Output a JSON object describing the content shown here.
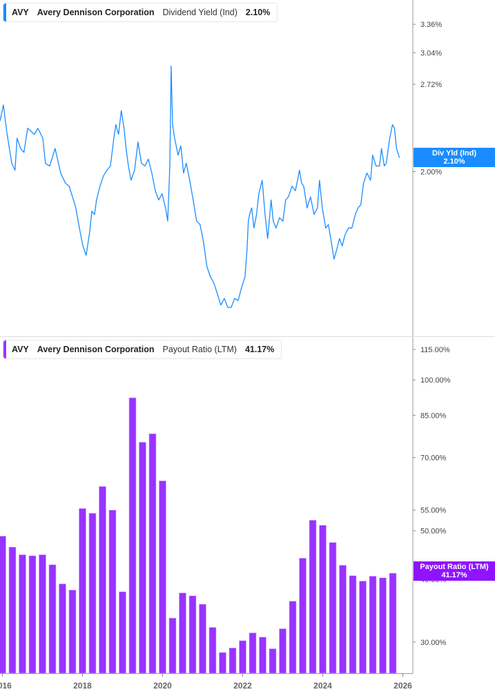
{
  "top_legend": {
    "ticker": "AVY",
    "company": "Avery Dennison Corporation",
    "metric": "Dividend Yield (Ind)",
    "value": "2.10%"
  },
  "bottom_legend": {
    "ticker": "AVY",
    "company": "Avery Dennison Corporation",
    "metric": "Payout Ratio (LTM)",
    "value": "41.17%"
  },
  "top_tag": {
    "label": "Div Yld (Ind)",
    "value": "2.10%"
  },
  "bottom_tag": {
    "label": "Payout Ratio (LTM)",
    "value": "41.17%"
  },
  "colors": {
    "yield": "#1a8cff",
    "payout": "#9933ff"
  },
  "chart_data": [
    {
      "type": "line",
      "title": "",
      "series": [
        {
          "name": "Dividend Yield (Ind)",
          "unit": "%"
        }
      ],
      "yscale": "log",
      "ylim": [
        1.12,
        3.66
      ],
      "xlim": [
        "2015-12",
        "2026-03"
      ],
      "yticks": [
        "2.00%",
        "2.72%",
        "3.04%",
        "3.36%"
      ],
      "grid": false,
      "points": [
        [
          "2015-12-10",
          2.39
        ],
        [
          "2016-01-10",
          2.53
        ],
        [
          "2016-02-10",
          2.3
        ],
        [
          "2016-03-25",
          2.06
        ],
        [
          "2016-04-25",
          2.01
        ],
        [
          "2016-05-13",
          2.25
        ],
        [
          "2016-06-15",
          2.17
        ],
        [
          "2016-07-15",
          2.14
        ],
        [
          "2016-08-18",
          2.33
        ],
        [
          "2016-10-18",
          2.28
        ],
        [
          "2016-11-20",
          2.33
        ],
        [
          "2017-01-04",
          2.25
        ],
        [
          "2017-01-28",
          2.06
        ],
        [
          "2017-03-06",
          2.04
        ],
        [
          "2017-04-25",
          2.17
        ],
        [
          "2017-06-15",
          1.99
        ],
        [
          "2017-07-28",
          1.92
        ],
        [
          "2017-09-01",
          1.9
        ],
        [
          "2017-10-01",
          1.83
        ],
        [
          "2017-11-01",
          1.76
        ],
        [
          "2017-12-03",
          1.64
        ],
        [
          "2018-01-04",
          1.54
        ],
        [
          "2018-02-04",
          1.49
        ],
        [
          "2018-03-06",
          1.62
        ],
        [
          "2018-03-25",
          1.74
        ],
        [
          "2018-04-19",
          1.72
        ],
        [
          "2018-05-07",
          1.81
        ],
        [
          "2018-06-08",
          1.9
        ],
        [
          "2018-07-09",
          1.97
        ],
        [
          "2018-08-10",
          2.01
        ],
        [
          "2018-09-12",
          2.04
        ],
        [
          "2018-10-13",
          2.25
        ],
        [
          "2018-11-01",
          2.36
        ],
        [
          "2018-11-25",
          2.28
        ],
        [
          "2018-12-20",
          2.48
        ],
        [
          "2019-01-15",
          2.33
        ],
        [
          "2019-02-03",
          2.17
        ],
        [
          "2019-02-24",
          2.04
        ],
        [
          "2019-03-18",
          1.94
        ],
        [
          "2019-04-19",
          2.01
        ],
        [
          "2019-05-20",
          2.22
        ],
        [
          "2019-06-21",
          2.06
        ],
        [
          "2019-07-22",
          2.04
        ],
        [
          "2019-08-23",
          2.09
        ],
        [
          "2019-09-24",
          1.99
        ],
        [
          "2019-10-25",
          1.87
        ],
        [
          "2019-11-26",
          1.81
        ],
        [
          "2019-12-27",
          1.85
        ],
        [
          "2020-01-28",
          1.76
        ],
        [
          "2020-02-17",
          1.68
        ],
        [
          "2020-03-06",
          2.04
        ],
        [
          "2020-03-18",
          2.9
        ],
        [
          "2020-03-31",
          2.36
        ],
        [
          "2020-04-19",
          2.25
        ],
        [
          "2020-05-21",
          2.12
        ],
        [
          "2020-06-15",
          2.19
        ],
        [
          "2020-07-10",
          1.99
        ],
        [
          "2020-08-04",
          2.06
        ],
        [
          "2020-09-05",
          1.94
        ],
        [
          "2020-10-06",
          1.81
        ],
        [
          "2020-11-07",
          1.68
        ],
        [
          "2020-12-08",
          1.66
        ],
        [
          "2021-01-09",
          1.56
        ],
        [
          "2021-02-10",
          1.43
        ],
        [
          "2021-03-12",
          1.38
        ],
        [
          "2021-04-13",
          1.35
        ],
        [
          "2021-05-14",
          1.3
        ],
        [
          "2021-06-15",
          1.25
        ],
        [
          "2021-07-16",
          1.28
        ],
        [
          "2021-08-17",
          1.24
        ],
        [
          "2021-09-18",
          1.24
        ],
        [
          "2021-10-19",
          1.28
        ],
        [
          "2021-11-20",
          1.27
        ],
        [
          "2021-12-21",
          1.33
        ],
        [
          "2022-01-22",
          1.38
        ],
        [
          "2022-02-10",
          1.52
        ],
        [
          "2022-02-22",
          1.68
        ],
        [
          "2022-03-04",
          1.72
        ],
        [
          "2022-03-22",
          1.76
        ],
        [
          "2022-04-12",
          1.64
        ],
        [
          "2022-05-06",
          1.72
        ],
        [
          "2022-05-26",
          1.85
        ],
        [
          "2022-06-27",
          1.94
        ],
        [
          "2022-07-22",
          1.72
        ],
        [
          "2022-08-16",
          1.58
        ],
        [
          "2022-09-17",
          1.81
        ],
        [
          "2022-10-06",
          1.68
        ],
        [
          "2022-11-01",
          1.64
        ],
        [
          "2022-12-02",
          1.7
        ],
        [
          "2023-01-03",
          1.68
        ],
        [
          "2023-01-28",
          1.81
        ],
        [
          "2023-02-22",
          1.83
        ],
        [
          "2023-03-25",
          1.9
        ],
        [
          "2023-04-25",
          1.87
        ],
        [
          "2023-05-14",
          1.94
        ],
        [
          "2023-06-02",
          2.01
        ],
        [
          "2023-06-21",
          1.92
        ],
        [
          "2023-07-10",
          1.9
        ],
        [
          "2023-08-10",
          1.76
        ],
        [
          "2023-09-11",
          1.83
        ],
        [
          "2023-10-13",
          1.72
        ],
        [
          "2023-11-13",
          1.76
        ],
        [
          "2023-12-02",
          1.94
        ],
        [
          "2023-12-27",
          1.76
        ],
        [
          "2024-01-28",
          1.64
        ],
        [
          "2024-02-22",
          1.66
        ],
        [
          "2024-03-18",
          1.56
        ],
        [
          "2024-04-12",
          1.47
        ],
        [
          "2024-05-07",
          1.52
        ],
        [
          "2024-06-01",
          1.58
        ],
        [
          "2024-06-26",
          1.54
        ],
        [
          "2024-07-21",
          1.6
        ],
        [
          "2024-08-22",
          1.64
        ],
        [
          "2024-09-23",
          1.64
        ],
        [
          "2024-10-24",
          1.72
        ],
        [
          "2024-11-18",
          1.76
        ],
        [
          "2024-12-13",
          1.78
        ],
        [
          "2025-01-07",
          1.92
        ],
        [
          "2025-02-08",
          1.99
        ],
        [
          "2025-03-11",
          1.94
        ],
        [
          "2025-03-30",
          2.12
        ],
        [
          "2025-04-30",
          2.04
        ],
        [
          "2025-05-31",
          2.04
        ],
        [
          "2025-06-19",
          2.17
        ],
        [
          "2025-07-14",
          2.04
        ],
        [
          "2025-08-02",
          2.06
        ],
        [
          "2025-09-03",
          2.25
        ],
        [
          "2025-09-28",
          2.36
        ],
        [
          "2025-10-16",
          2.33
        ],
        [
          "2025-11-04",
          2.17
        ],
        [
          "2025-11-23",
          2.12
        ],
        [
          "2025-11-30",
          2.1
        ]
      ]
    },
    {
      "type": "bar",
      "title": "",
      "series": [
        {
          "name": "Payout Ratio (LTM)",
          "unit": "%"
        }
      ],
      "yscale": "log",
      "ylim": [
        26,
        121
      ],
      "yticks": [
        "30.00%",
        "40.00%",
        "50.00%",
        "55.00%",
        "70.00%",
        "85.00%",
        "100.00%",
        "115.00%"
      ],
      "xticks": [
        "2016",
        "2018",
        "2020",
        "2022",
        "2024",
        "2026"
      ],
      "grid": false,
      "categories": [
        "2016-Q1",
        "2016-Q2",
        "2016-Q3",
        "2016-Q4",
        "2017-Q1",
        "2017-Q2",
        "2017-Q3",
        "2017-Q4",
        "2018-Q1",
        "2018-Q2",
        "2018-Q3",
        "2018-Q4",
        "2019-Q1",
        "2019-Q2",
        "2019-Q3",
        "2019-Q4",
        "2020-Q1",
        "2020-Q2",
        "2020-Q3",
        "2020-Q4",
        "2021-Q1",
        "2021-Q2",
        "2021-Q3",
        "2021-Q4",
        "2022-Q1",
        "2022-Q2",
        "2022-Q3",
        "2022-Q4",
        "2023-Q1",
        "2023-Q2",
        "2023-Q3",
        "2023-Q4",
        "2024-Q1",
        "2024-Q2",
        "2024-Q3",
        "2024-Q4",
        "2025-Q1",
        "2025-Q2",
        "2025-Q3",
        "2025-Q4"
      ],
      "values": [
        48.8,
        46.4,
        44.8,
        44.6,
        44.8,
        42.8,
        39.2,
        38.1,
        55.4,
        54.2,
        61.3,
        55.0,
        37.8,
        92.1,
        75.1,
        78.1,
        62.9,
        33.5,
        37.6,
        37.1,
        35.7,
        32.1,
        28.6,
        29.2,
        30.2,
        31.3,
        30.7,
        29.1,
        31.9,
        36.2,
        44.1,
        52.5,
        51.3,
        47.4,
        42.7,
        40.7,
        39.7,
        40.6,
        40.3,
        41.17
      ]
    }
  ]
}
